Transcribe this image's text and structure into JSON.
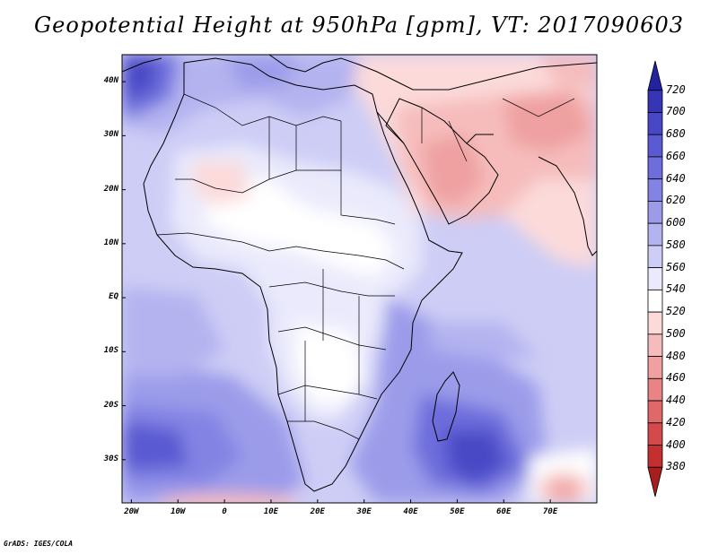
{
  "title": "Geopotential Height at 950hPa [gpm], VT: 2017090603",
  "credit": "GrADS: IGES/COLA",
  "map": {
    "lon_range": [
      -22,
      80
    ],
    "lat_range": [
      -38,
      45
    ],
    "lat_labels": [
      "40N",
      "30N",
      "20N",
      "10N",
      "EQ",
      "10S",
      "20S",
      "30S"
    ],
    "lat_values": [
      40,
      30,
      20,
      10,
      0,
      -10,
      -20,
      -30
    ],
    "lon_labels": [
      "20W",
      "10W",
      "0",
      "10E",
      "20E",
      "30E",
      "40E",
      "50E",
      "60E",
      "70E"
    ],
    "lon_values": [
      -20,
      -10,
      0,
      10,
      20,
      30,
      40,
      50,
      60,
      70
    ]
  },
  "colorbar": {
    "levels": [
      "720",
      "700",
      "680",
      "660",
      "640",
      "620",
      "600",
      "580",
      "560",
      "540",
      "520",
      "500",
      "480",
      "460",
      "440",
      "420",
      "400",
      "380"
    ],
    "colors": [
      "#2323a0",
      "#3535b5",
      "#4848c6",
      "#5a5ad2",
      "#6d6ddc",
      "#8383e4",
      "#9b9bea",
      "#b3b3f0",
      "#cdcdf6",
      "#eaeafc",
      "#ffffff",
      "#fcdada",
      "#f6bcbc",
      "#efa0a0",
      "#e88484",
      "#df6868",
      "#d44a4a",
      "#c43030",
      "#a61e1e"
    ]
  }
}
